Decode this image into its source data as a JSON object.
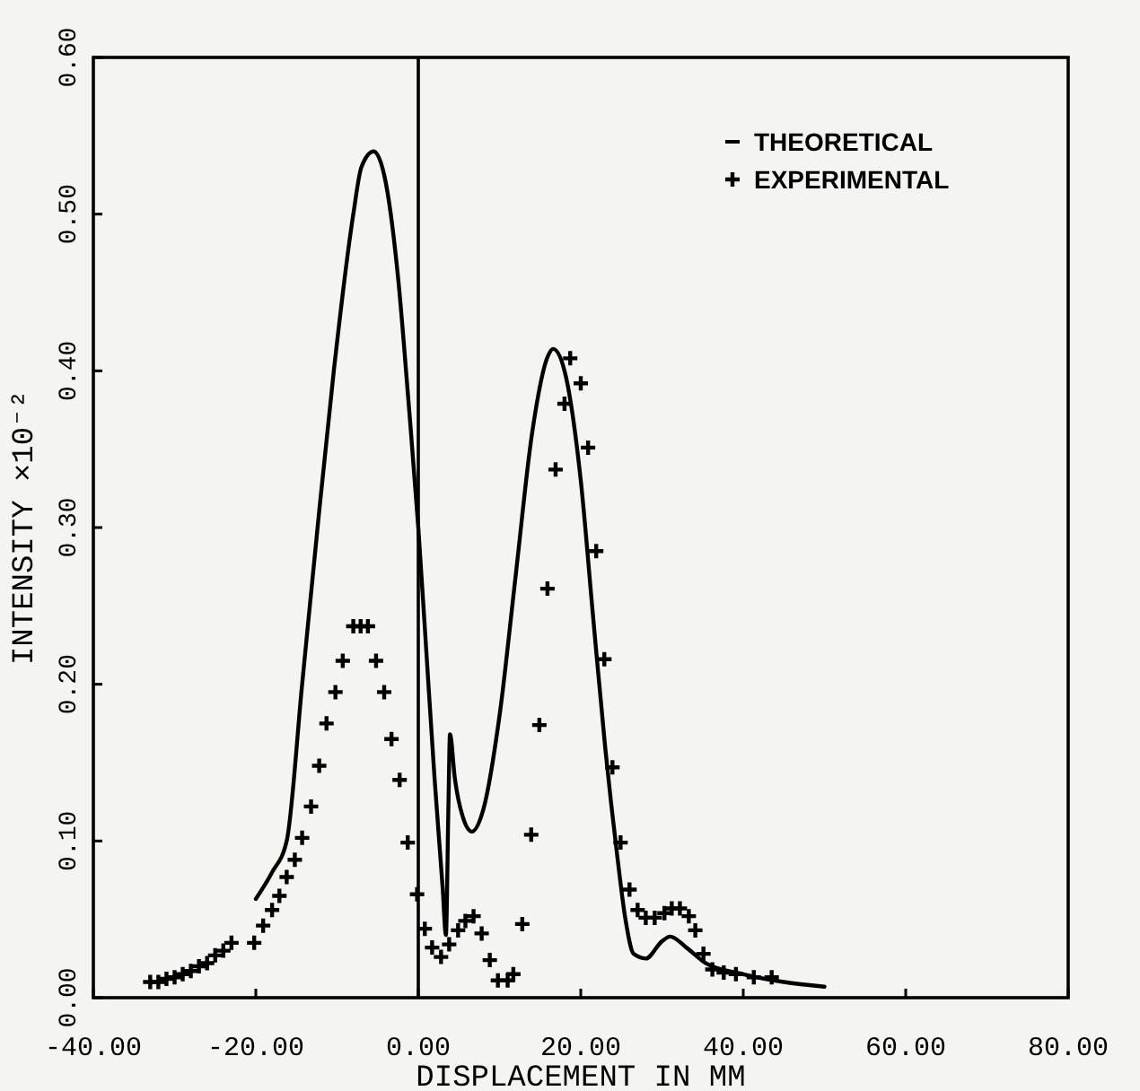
{
  "chart_data": {
    "type": "line",
    "xlabel": "DISPLACEMENT IN MM",
    "ylabel": "INTENSITY ×10⁻²",
    "xlim": [
      -40,
      80
    ],
    "xticks": [
      {
        "value": -40,
        "label": "-40.00"
      },
      {
        "value": -20,
        "label": "-20.00"
      },
      {
        "value": 0,
        "label": "0.00"
      },
      {
        "value": 20,
        "label": "20.00"
      },
      {
        "value": 40,
        "label": "40.00"
      },
      {
        "value": 60,
        "label": "60.00"
      },
      {
        "value": 80,
        "label": "80.00"
      }
    ],
    "ylim": [
      0,
      0.6
    ],
    "yticks": [
      {
        "value": 0,
        "label": "0.00"
      },
      {
        "value": 0.1,
        "label": "0.10"
      },
      {
        "value": 0.2,
        "label": "0.20"
      },
      {
        "value": 0.3,
        "label": "0.30"
      },
      {
        "value": 0.4,
        "label": "0.40"
      },
      {
        "value": 0.5,
        "label": "0.50"
      },
      {
        "value": 0.6,
        "label": "0.60"
      }
    ],
    "legend": "top right",
    "grid": false,
    "ref_lines": [
      {
        "axis": "x",
        "value": 0,
        "color": "#000000"
      }
    ],
    "series": [
      {
        "name": "THEORETICAL",
        "color": "#000000",
        "line_style": "solid",
        "marker": "none",
        "x": [
          -20,
          -18,
          -16.2,
          -14.3,
          -12.4,
          -10.4,
          -8,
          -7,
          -5.5,
          -4,
          -2.5,
          -1.2,
          0,
          1,
          2,
          3,
          3.4,
          3.7,
          3.9,
          4.5,
          5.5,
          6.6,
          8,
          10,
          12,
          14,
          16,
          16.6,
          18,
          20,
          21.5,
          23,
          24.5,
          25.5,
          26.5,
          28,
          30,
          31,
          33,
          35.4,
          40,
          45,
          50
        ],
        "values": [
          0.063,
          0.08,
          0.1,
          0.2,
          0.3,
          0.4,
          0.5,
          0.53,
          0.54,
          0.52,
          0.46,
          0.38,
          0.3,
          0.22,
          0.14,
          0.07,
          0.04,
          0.12,
          0.168,
          0.14,
          0.115,
          0.106,
          0.12,
          0.18,
          0.27,
          0.36,
          0.41,
          0.414,
          0.4,
          0.33,
          0.244,
          0.16,
          0.09,
          0.05,
          0.028,
          0.025,
          0.036,
          0.039,
          0.032,
          0.022,
          0.015,
          0.01,
          0.007
        ]
      },
      {
        "name": "EXPERIMENTAL",
        "type": "scatter",
        "color": "#000000",
        "marker": "cross",
        "x": [
          -33,
          -32,
          -31,
          -30,
          -29,
          -28,
          -27,
          -26,
          -25,
          -24,
          -23,
          -20.2,
          -19.1,
          -18,
          -17.1,
          -16.2,
          -15.2,
          -14.3,
          -13.2,
          -12.2,
          -11.3,
          -10.2,
          -9.3,
          -8,
          -7.1,
          -6.2,
          -5.2,
          -4.2,
          -3.3,
          -2.3,
          -1.3,
          -0.15,
          0.8,
          1.7,
          2.8,
          3.8,
          4.9,
          5.8,
          6.8,
          7.8,
          8.8,
          9.8,
          11,
          11.7,
          12.8,
          13.9,
          14.9,
          15.9,
          16.9,
          18,
          18.7,
          20,
          20.9,
          21.9,
          22.9,
          23.9,
          24.9,
          26,
          27,
          28,
          29.1,
          30.3,
          31.2,
          32.2,
          33.3,
          34.1,
          35.1,
          36.2,
          37.6,
          39.1,
          41.3,
          43.5
        ],
        "values": [
          0.01,
          0.01,
          0.012,
          0.013,
          0.015,
          0.017,
          0.02,
          0.022,
          0.027,
          0.03,
          0.035,
          0.035,
          0.046,
          0.056,
          0.065,
          0.077,
          0.088,
          0.102,
          0.122,
          0.148,
          0.175,
          0.195,
          0.215,
          0.237,
          0.237,
          0.237,
          0.215,
          0.195,
          0.165,
          0.139,
          0.099,
          0.066,
          0.044,
          0.032,
          0.026,
          0.034,
          0.043,
          0.049,
          0.052,
          0.041,
          0.024,
          0.011,
          0.011,
          0.015,
          0.047,
          0.104,
          0.174,
          0.261,
          0.337,
          0.379,
          0.408,
          0.392,
          0.351,
          0.285,
          0.216,
          0.147,
          0.099,
          0.069,
          0.056,
          0.051,
          0.051,
          0.054,
          0.057,
          0.057,
          0.052,
          0.043,
          0.028,
          0.018,
          0.016,
          0.015,
          0.013,
          0.013
        ]
      }
    ]
  }
}
